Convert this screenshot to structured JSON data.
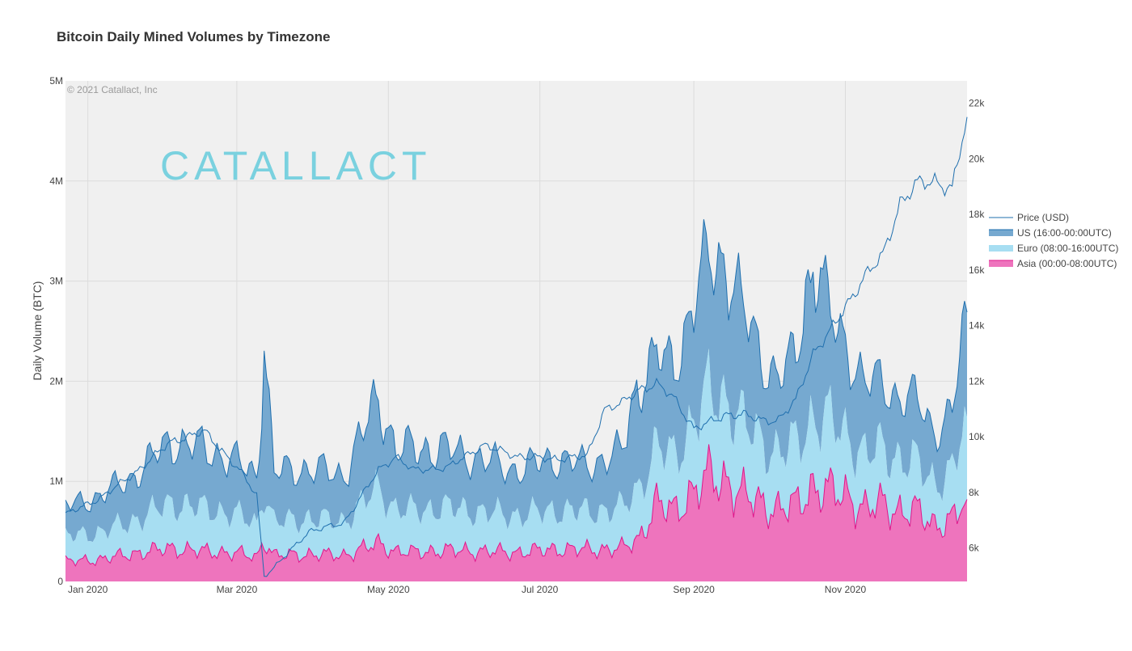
{
  "chart_data": {
    "type": "area",
    "title": "Bitcoin Daily Mined Volumes by Timezone",
    "watermark": "© 2021 Catallact, Inc",
    "logo": "CATALLACT",
    "ylabel": "Daily Volume (BTC)",
    "ylim": [
      0,
      5000000
    ],
    "y2lim": [
      4800,
      22800
    ],
    "yticks": [
      {
        "value": 0,
        "label": "0"
      },
      {
        "value": 1000000,
        "label": "1M"
      },
      {
        "value": 2000000,
        "label": "2M"
      },
      {
        "value": 3000000,
        "label": "3M"
      },
      {
        "value": 4000000,
        "label": "4M"
      },
      {
        "value": 5000000,
        "label": "5M"
      }
    ],
    "y2ticks": [
      {
        "value": 6000,
        "label": "6k"
      },
      {
        "value": 8000,
        "label": "8k"
      },
      {
        "value": 10000,
        "label": "10k"
      },
      {
        "value": 12000,
        "label": "12k"
      },
      {
        "value": 14000,
        "label": "14k"
      },
      {
        "value": 16000,
        "label": "16k"
      },
      {
        "value": 18000,
        "label": "18k"
      },
      {
        "value": 20000,
        "label": "20k"
      },
      {
        "value": 22000,
        "label": "22k"
      }
    ],
    "xlim": [
      "2019-12-23",
      "2020-12-20"
    ],
    "xticks": [
      {
        "date": "2020-01-01",
        "label": "Jan 2020"
      },
      {
        "date": "2020-03-01",
        "label": "Mar 2020"
      },
      {
        "date": "2020-05-01",
        "label": "May 2020"
      },
      {
        "date": "2020-07-01",
        "label": "Jul 2020"
      },
      {
        "date": "2020-09-01",
        "label": "Sep 2020"
      },
      {
        "date": "2020-11-01",
        "label": "Nov 2020"
      }
    ],
    "stacked": true,
    "grid": true,
    "legend_position": "right",
    "colors": {
      "asia_line": "#e0168a",
      "asia_fill": "#ee74bd",
      "euro_fill": "#a7def2",
      "us_line": "#1f6fae",
      "us_fill": "#76a9d0",
      "price": "#1f6fae",
      "plot_bg": "#f0f0f0",
      "grid": "#dcdcdc"
    },
    "x": [
      "2019-12-23",
      "2020-01-06",
      "2020-01-20",
      "2020-02-03",
      "2020-02-17",
      "2020-03-02",
      "2020-03-09",
      "2020-03-12",
      "2020-03-16",
      "2020-03-30",
      "2020-04-13",
      "2020-04-27",
      "2020-05-04",
      "2020-05-11",
      "2020-05-25",
      "2020-06-08",
      "2020-06-22",
      "2020-07-06",
      "2020-07-20",
      "2020-07-27",
      "2020-08-03",
      "2020-08-10",
      "2020-08-17",
      "2020-08-24",
      "2020-09-01",
      "2020-09-07",
      "2020-09-14",
      "2020-09-21",
      "2020-09-28",
      "2020-10-05",
      "2020-10-12",
      "2020-10-19",
      "2020-10-26",
      "2020-11-02",
      "2020-11-09",
      "2020-11-16",
      "2020-11-23",
      "2020-11-30",
      "2020-12-07",
      "2020-12-14",
      "2020-12-20"
    ],
    "series": [
      {
        "name": "Asia (00:00-08:00UTC)",
        "values": [
          200000,
          220000,
          280000,
          330000,
          300000,
          280000,
          240000,
          420000,
          260000,
          270000,
          260000,
          380000,
          300000,
          290000,
          310000,
          300000,
          290000,
          320000,
          320000,
          320000,
          330000,
          430000,
          780000,
          700000,
          900000,
          1050000,
          1000000,
          860000,
          780000,
          720000,
          760000,
          940000,
          900000,
          850000,
          720000,
          780000,
          700000,
          700000,
          560000,
          620000,
          820000
        ]
      },
      {
        "name": "Euro (08:00-16:00UTC)",
        "values": [
          250000,
          270000,
          330000,
          450000,
          430000,
          380000,
          330000,
          500000,
          330000,
          360000,
          340000,
          560000,
          420000,
          420000,
          430000,
          390000,
          370000,
          390000,
          380000,
          390000,
          400000,
          520000,
          550000,
          560000,
          700000,
          850000,
          820000,
          720000,
          640000,
          560000,
          620000,
          700000,
          720000,
          600000,
          540000,
          560000,
          520000,
          480000,
          430000,
          480000,
          820000
        ]
      },
      {
        "name": "US (16:00-00:00UTC)",
        "values": [
          300000,
          360000,
          450000,
          620000,
          600000,
          520000,
          480000,
          1400000,
          500000,
          500000,
          460000,
          900000,
          600000,
          620000,
          580000,
          520000,
          450000,
          520000,
          460000,
          520000,
          560000,
          1100000,
          900000,
          900000,
          1200000,
          1300000,
          1400000,
          1100000,
          850000,
          750000,
          850000,
          1650000,
          1000000,
          900000,
          700000,
          650000,
          620000,
          620000,
          520000,
          580000,
          1050000
        ]
      },
      {
        "name": "Price (USD)",
        "axis": "right",
        "values": [
          7200,
          7800,
          8700,
          9800,
          10200,
          8800,
          7900,
          5000,
          5300,
          6600,
          6900,
          8800,
          9300,
          8800,
          8900,
          9700,
          9300,
          9200,
          9300,
          11000,
          11200,
          11700,
          11900,
          11400,
          10300,
          10500,
          10800,
          10800,
          10600,
          10600,
          11300,
          13000,
          13800,
          14800,
          15800,
          16500,
          18400,
          19100,
          19200,
          18900,
          21500
        ]
      }
    ],
    "legend": [
      {
        "key": "Price (USD)",
        "label": "Price (USD)",
        "kind": "line"
      },
      {
        "key": "US (16:00-00:00UTC)",
        "label": "US (16:00-00:00UTC)",
        "kind": "area",
        "color_key": "us"
      },
      {
        "key": "Euro (08:00-16:00UTC)",
        "label": "Euro (08:00-16:00UTC)",
        "kind": "area",
        "color_key": "euro"
      },
      {
        "key": "Asia (00:00-08:00UTC)",
        "label": "Asia (00:00-08:00UTC)",
        "kind": "area",
        "color_key": "asia"
      }
    ]
  }
}
